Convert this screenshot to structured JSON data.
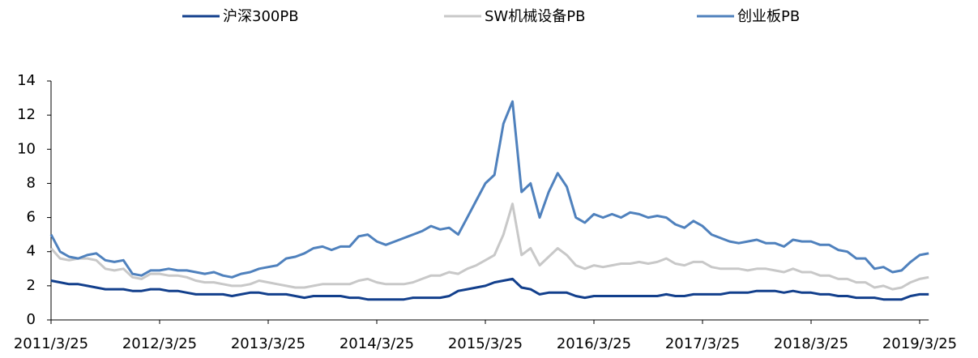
{
  "chart_data": {
    "type": "line",
    "categories": [
      "2011/3/25",
      null,
      null,
      null,
      null,
      null,
      null,
      null,
      null,
      null,
      null,
      null,
      "2012/3/25",
      null,
      null,
      null,
      null,
      null,
      null,
      null,
      null,
      null,
      null,
      null,
      "2013/3/25",
      null,
      null,
      null,
      null,
      null,
      null,
      null,
      null,
      null,
      null,
      null,
      "2014/3/25",
      null,
      null,
      null,
      null,
      null,
      null,
      null,
      null,
      null,
      null,
      null,
      "2015/3/25",
      null,
      null,
      null,
      null,
      null,
      null,
      null,
      null,
      null,
      null,
      null,
      "2016/3/25",
      null,
      null,
      null,
      null,
      null,
      null,
      null,
      null,
      null,
      null,
      null,
      "2017/3/25",
      null,
      null,
      null,
      null,
      null,
      null,
      null,
      null,
      null,
      null,
      null,
      "2018/3/25",
      null,
      null,
      null,
      null,
      null,
      null,
      null,
      null,
      null,
      null,
      null,
      "2019/3/25",
      null
    ],
    "series": [
      {
        "name": "沪深300PB",
        "color": "#123f8c",
        "values": [
          2.3,
          2.2,
          2.1,
          2.1,
          2.0,
          1.9,
          1.8,
          1.8,
          1.8,
          1.7,
          1.7,
          1.8,
          1.8,
          1.7,
          1.7,
          1.6,
          1.5,
          1.5,
          1.5,
          1.5,
          1.4,
          1.5,
          1.6,
          1.6,
          1.5,
          1.5,
          1.5,
          1.4,
          1.3,
          1.4,
          1.4,
          1.4,
          1.4,
          1.3,
          1.3,
          1.2,
          1.2,
          1.2,
          1.2,
          1.2,
          1.3,
          1.3,
          1.3,
          1.3,
          1.4,
          1.7,
          1.8,
          1.9,
          2.0,
          2.2,
          2.3,
          2.4,
          1.9,
          1.8,
          1.5,
          1.6,
          1.6,
          1.6,
          1.4,
          1.3,
          1.4,
          1.4,
          1.4,
          1.4,
          1.4,
          1.4,
          1.4,
          1.4,
          1.5,
          1.4,
          1.4,
          1.5,
          1.5,
          1.5,
          1.5,
          1.6,
          1.6,
          1.6,
          1.7,
          1.7,
          1.7,
          1.6,
          1.7,
          1.6,
          1.6,
          1.5,
          1.5,
          1.4,
          1.4,
          1.3,
          1.3,
          1.3,
          1.2,
          1.2,
          1.2,
          1.4,
          1.5,
          1.5
        ]
      },
      {
        "name": "SW机械设备PB",
        "color": "#c8c8c8",
        "values": [
          4.2,
          3.6,
          3.5,
          3.6,
          3.6,
          3.5,
          3.0,
          2.9,
          3.0,
          2.5,
          2.4,
          2.7,
          2.7,
          2.6,
          2.6,
          2.5,
          2.3,
          2.2,
          2.2,
          2.1,
          2.0,
          2.0,
          2.1,
          2.3,
          2.2,
          2.1,
          2.0,
          1.9,
          1.9,
          2.0,
          2.1,
          2.1,
          2.1,
          2.1,
          2.3,
          2.4,
          2.2,
          2.1,
          2.1,
          2.1,
          2.2,
          2.4,
          2.6,
          2.6,
          2.8,
          2.7,
          3.0,
          3.2,
          3.5,
          3.8,
          5.0,
          6.8,
          3.8,
          4.2,
          3.2,
          3.7,
          4.2,
          3.8,
          3.2,
          3.0,
          3.2,
          3.1,
          3.2,
          3.3,
          3.3,
          3.4,
          3.3,
          3.4,
          3.6,
          3.3,
          3.2,
          3.4,
          3.4,
          3.1,
          3.0,
          3.0,
          3.0,
          2.9,
          3.0,
          3.0,
          2.9,
          2.8,
          3.0,
          2.8,
          2.8,
          2.6,
          2.6,
          2.4,
          2.4,
          2.2,
          2.2,
          1.9,
          2.0,
          1.8,
          1.9,
          2.2,
          2.4,
          2.5
        ]
      },
      {
        "name": "创业板PB",
        "color": "#4f81bd",
        "values": [
          5.0,
          4.0,
          3.7,
          3.6,
          3.8,
          3.9,
          3.5,
          3.4,
          3.5,
          2.7,
          2.6,
          2.9,
          2.9,
          3.0,
          2.9,
          2.9,
          2.8,
          2.7,
          2.8,
          2.6,
          2.5,
          2.7,
          2.8,
          3.0,
          3.1,
          3.2,
          3.6,
          3.7,
          3.9,
          4.2,
          4.3,
          4.1,
          4.3,
          4.3,
          4.9,
          5.0,
          4.6,
          4.4,
          4.6,
          4.8,
          5.0,
          5.2,
          5.5,
          5.3,
          5.4,
          5.0,
          6.0,
          7.0,
          8.0,
          8.5,
          11.5,
          12.8,
          7.5,
          8.0,
          6.0,
          7.5,
          8.6,
          7.8,
          6.0,
          5.7,
          6.2,
          6.0,
          6.2,
          6.0,
          6.3,
          6.2,
          6.0,
          6.1,
          6.0,
          5.6,
          5.4,
          5.8,
          5.5,
          5.0,
          4.8,
          4.6,
          4.5,
          4.6,
          4.7,
          4.5,
          4.5,
          4.3,
          4.7,
          4.6,
          4.6,
          4.4,
          4.4,
          4.1,
          4.0,
          3.6,
          3.6,
          3.0,
          3.1,
          2.8,
          2.9,
          3.4,
          3.8,
          3.9
        ]
      }
    ],
    "ylim": [
      0,
      14
    ],
    "yticks": [
      0,
      2,
      4,
      6,
      8,
      10,
      12,
      14
    ],
    "legend": "top"
  }
}
